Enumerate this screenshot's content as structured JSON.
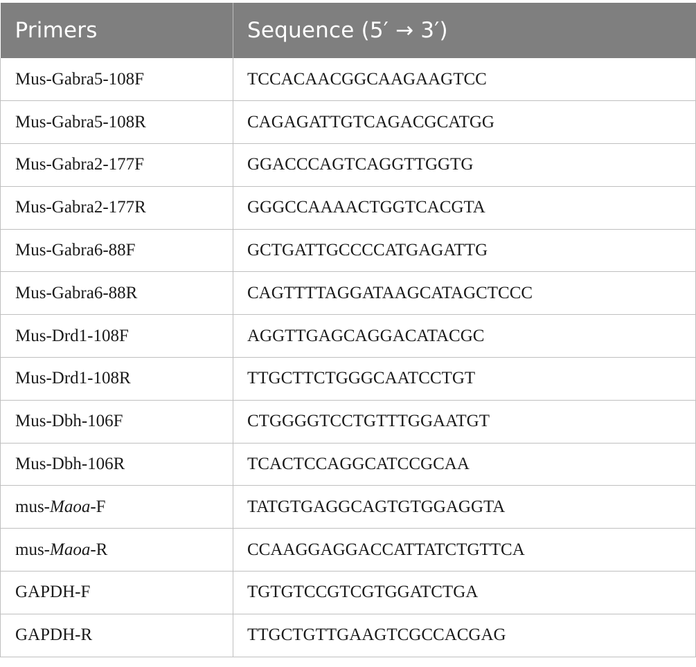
{
  "table": {
    "headers": {
      "primers": "Primers",
      "sequence": "Sequence (5′ → 3′)"
    },
    "rows": [
      {
        "pre": "Mus-Gabra5-108F",
        "it": "",
        "post": "",
        "seq": "TCCACAACGGCAAGAAGTCC"
      },
      {
        "pre": "Mus-Gabra5-108R",
        "it": "",
        "post": "",
        "seq": "CAGAGATTGTCAGACGCATGG"
      },
      {
        "pre": "Mus-Gabra2-177F",
        "it": "",
        "post": "",
        "seq": "GGACCCAGTCAGGTTGGTG"
      },
      {
        "pre": "Mus-Gabra2-177R",
        "it": "",
        "post": "",
        "seq": "GGGCCAAAACTGGTCACGTA"
      },
      {
        "pre": "Mus-Gabra6-88F",
        "it": "",
        "post": "",
        "seq": "GCTGATTGCCCCATGAGATTG"
      },
      {
        "pre": "Mus-Gabra6-88R",
        "it": "",
        "post": "",
        "seq": "CAGTTTTAGGATAAGCATAGCTCCC"
      },
      {
        "pre": "Mus-Drd1-108F",
        "it": "",
        "post": "",
        "seq": "AGGTTGAGCAGGACATACGC"
      },
      {
        "pre": "Mus-Drd1-108R",
        "it": "",
        "post": "",
        "seq": "TTGCTTCTGGGCAATCCTGT"
      },
      {
        "pre": "Mus-Dbh-106F",
        "it": "",
        "post": "",
        "seq": "CTGGGGTCCTGTTTGGAATGT"
      },
      {
        "pre": "Mus-Dbh-106R",
        "it": "",
        "post": "",
        "seq": "TCACTCCAGGCATCCGCAA"
      },
      {
        "pre": "mus-",
        "it": "Maoa",
        "post": "-F",
        "seq": "TATGTGAGGCAGTGTGGAGGTA"
      },
      {
        "pre": "mus-",
        "it": "Maoa",
        "post": "-R",
        "seq": "CCAAGGAGGACCATTATCTGTTCA"
      },
      {
        "pre": "GAPDH-F",
        "it": "",
        "post": "",
        "seq": "TGTGTCCGTCGTGGATCTGA"
      },
      {
        "pre": "GAPDH-R",
        "it": "",
        "post": "",
        "seq": "TTGCTGTTGAAGTCGCCACGAG"
      }
    ]
  }
}
